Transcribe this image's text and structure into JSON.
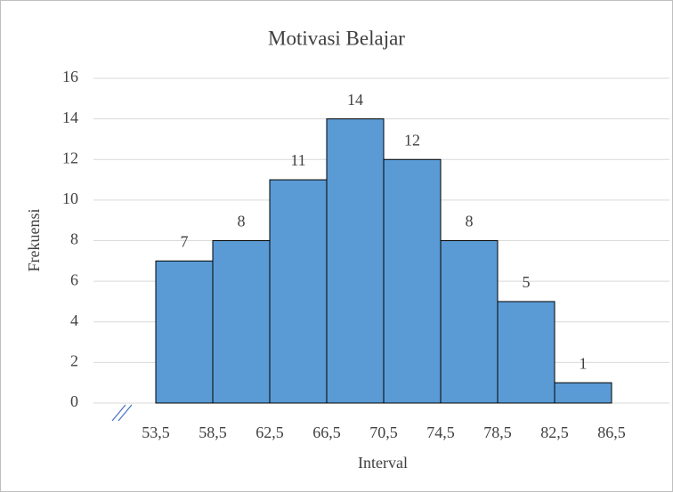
{
  "chart_data": {
    "type": "histogram",
    "title": "Motivasi Belajar",
    "x_label": "Interval",
    "y_label": "Frekuensi",
    "bins": [
      53.5,
      58.5,
      62.5,
      66.5,
      70.5,
      74.5,
      78.5,
      82.5,
      86.5
    ],
    "xticks": [
      {
        "value": 53.5,
        "label": "53,5"
      },
      {
        "value": 58.5,
        "label": "58,5"
      },
      {
        "value": 62.5,
        "label": "62,5"
      },
      {
        "value": 66.5,
        "label": "66,5"
      },
      {
        "value": 70.5,
        "label": "70,5"
      },
      {
        "value": 74.5,
        "label": "74,5"
      },
      {
        "value": 78.5,
        "label": "78,5"
      },
      {
        "value": 82.5,
        "label": "82,5"
      },
      {
        "value": 86.5,
        "label": "86,5"
      }
    ],
    "values": [
      7,
      8,
      11,
      14,
      12,
      8,
      5,
      1
    ],
    "color": "#5b9bd5",
    "ylim": [
      0,
      16
    ],
    "yticks": [
      0,
      2,
      4,
      6,
      8,
      10,
      12,
      14,
      16
    ],
    "grid": true
  }
}
